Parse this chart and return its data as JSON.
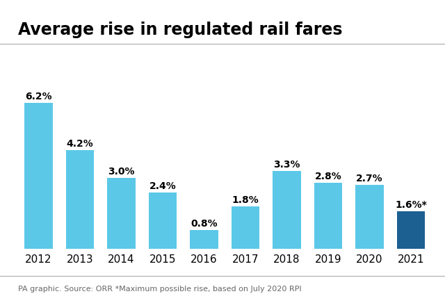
{
  "title": "Average rise in regulated rail fares",
  "categories": [
    "2012",
    "2013",
    "2014",
    "2015",
    "2016",
    "2017",
    "2018",
    "2019",
    "2020",
    "2021"
  ],
  "values": [
    6.2,
    4.2,
    3.0,
    2.4,
    0.8,
    1.8,
    3.3,
    2.8,
    2.7,
    1.6
  ],
  "labels": [
    "6.2%",
    "4.2%",
    "3.0%",
    "2.4%",
    "0.8%",
    "1.8%",
    "3.3%",
    "2.8%",
    "2.7%",
    "1.6%*"
  ],
  "bar_colors": [
    "#5bc8e8",
    "#5bc8e8",
    "#5bc8e8",
    "#5bc8e8",
    "#5bc8e8",
    "#5bc8e8",
    "#5bc8e8",
    "#5bc8e8",
    "#5bc8e8",
    "#1b6090"
  ],
  "title_fontsize": 17,
  "label_fontsize": 10,
  "tick_fontsize": 11,
  "source_text": "PA graphic. Source: ORR *Maximum possible rise, based on July 2020 RPI",
  "source_fontsize": 8,
  "ylim": [
    0,
    7.5
  ],
  "background_color": "#ffffff",
  "line_color": "#aaaaaa",
  "label_color": "#000000",
  "tick_color": "#000000"
}
